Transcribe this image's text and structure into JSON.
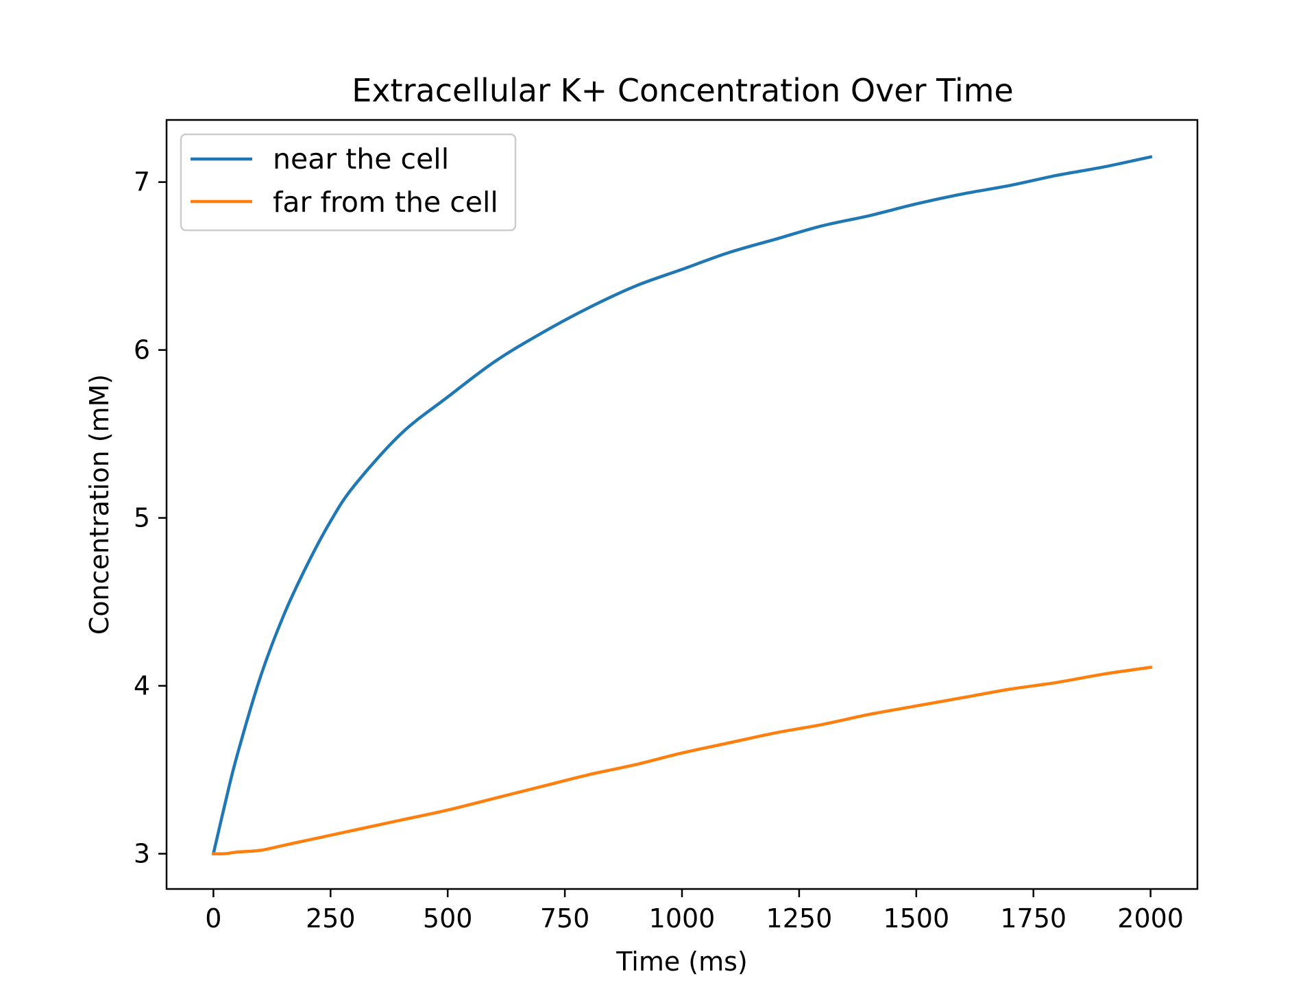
{
  "chart_data": {
    "type": "line",
    "title": "Extracellular K+ Concentration Over Time",
    "xlabel": "Time (ms)",
    "ylabel": "Concentration (mM)",
    "xlim": [
      -100,
      2100
    ],
    "ylim": [
      2.79,
      7.37
    ],
    "x_ticks": [
      0,
      250,
      500,
      750,
      1000,
      1250,
      1500,
      1750,
      2000
    ],
    "x_tick_labels": [
      "0",
      "250",
      "500",
      "750",
      "1000",
      "1250",
      "1500",
      "1750",
      "2000"
    ],
    "y_ticks": [
      3,
      4,
      5,
      6,
      7
    ],
    "y_tick_labels": [
      "3",
      "4",
      "5",
      "6",
      "7"
    ],
    "grid": false,
    "legend_position": "upper-left",
    "x": [
      0,
      25,
      50,
      100,
      150,
      200,
      250,
      300,
      400,
      500,
      600,
      700,
      800,
      900,
      1000,
      1100,
      1200,
      1300,
      1400,
      1500,
      1600,
      1700,
      1800,
      1900,
      2000
    ],
    "series": [
      {
        "name": "near the cell",
        "color": "#1f77b4",
        "values": [
          3.0,
          3.3,
          3.58,
          4.05,
          4.42,
          4.72,
          4.98,
          5.19,
          5.5,
          5.72,
          5.93,
          6.1,
          6.25,
          6.38,
          6.48,
          6.58,
          6.66,
          6.74,
          6.8,
          6.87,
          6.93,
          6.98,
          7.04,
          7.09,
          7.15
        ]
      },
      {
        "name": "far from the cell",
        "color": "#ff7f0e",
        "values": [
          3.0,
          3.0,
          3.01,
          3.02,
          3.05,
          3.08,
          3.11,
          3.14,
          3.2,
          3.26,
          3.33,
          3.4,
          3.47,
          3.53,
          3.6,
          3.66,
          3.72,
          3.77,
          3.83,
          3.88,
          3.93,
          3.98,
          4.02,
          4.07,
          4.11
        ]
      }
    ]
  }
}
